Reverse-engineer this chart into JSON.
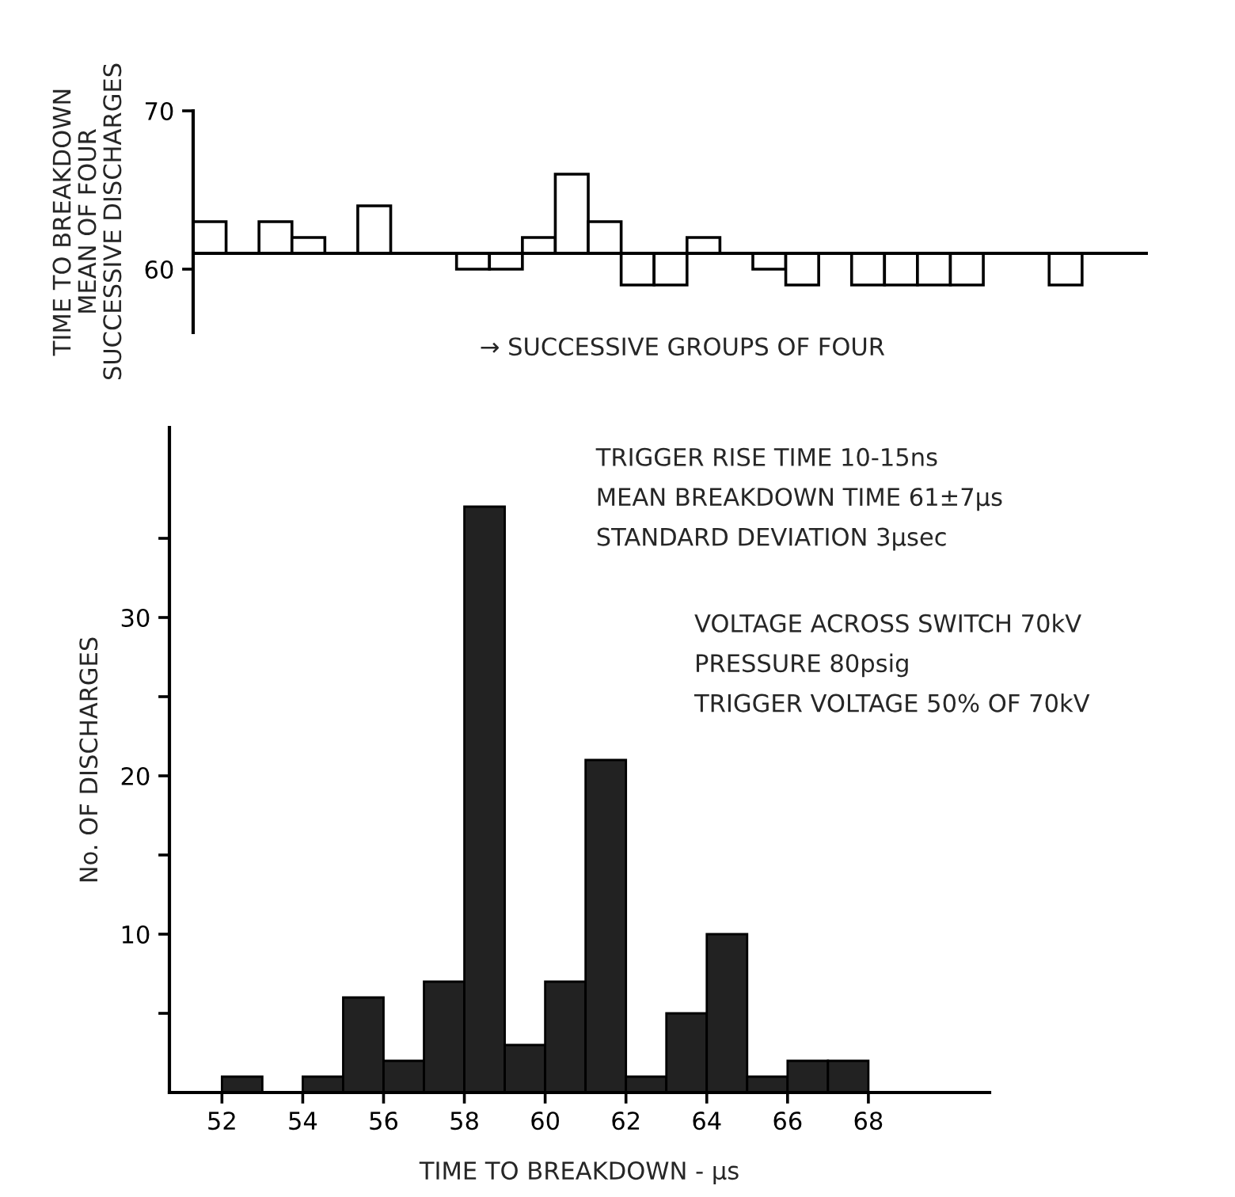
{
  "chart_data": [
    {
      "type": "bar",
      "ylabel": "TIME TO BREAKDOWN\nMEAN OF FOUR\nSUCCESSIVE DISCHARGES",
      "categories": [
        null,
        null,
        null,
        null,
        null,
        null,
        null,
        null,
        null,
        null,
        null,
        null,
        null,
        null,
        null,
        null,
        null,
        null,
        null,
        null,
        null,
        null,
        null,
        null,
        null,
        null,
        null,
        null,
        null
      ],
      "base": [
        61,
        null,
        61,
        61,
        null,
        61,
        null,
        null,
        61,
        61,
        61,
        61,
        61,
        61,
        61,
        61,
        null,
        61,
        61,
        null,
        61,
        61,
        61,
        61,
        null,
        null,
        61,
        null,
        null
      ],
      "values": [
        2,
        null,
        2,
        1,
        null,
        3,
        null,
        null,
        -1,
        -1,
        1,
        5,
        2,
        -2,
        -2,
        1,
        null,
        -1,
        -2,
        null,
        -2,
        -2,
        -2,
        -2,
        null,
        null,
        -2,
        null,
        null
      ],
      "color": "#ffffff",
      "ylim": [
        56,
        70
      ],
      "yticks": [
        60,
        70
      ],
      "tick_labels": "y",
      "grid": false,
      "ref_lines": [
        {
          "axis": "y",
          "value": 61
        }
      ],
      "annotations": [
        "→ SUCCESSIVE GROUPS OF FOUR"
      ]
    },
    {
      "type": "histogram",
      "xlabel": "TIME TO BREAKDOWN - µs",
      "ylabel": "No. OF DISCHARGES",
      "bins": [
        52,
        53,
        54,
        55,
        56,
        57,
        58,
        59,
        60,
        61,
        62,
        63,
        64,
        65,
        66,
        67,
        68
      ],
      "values": [
        1,
        0,
        1,
        6,
        2,
        7,
        37,
        3,
        7,
        21,
        1,
        5,
        10,
        1,
        2,
        2
      ],
      "color": "#222222",
      "xlim": [
        50.7,
        71
      ],
      "xticks": [
        52,
        54,
        56,
        58,
        60,
        62,
        64,
        66,
        68
      ],
      "ylim": [
        0,
        42
      ],
      "yticks": [
        {
          "value": 5,
          "label": null
        },
        10,
        {
          "value": 15,
          "label": null
        },
        20,
        {
          "value": 25,
          "label": null
        },
        30,
        {
          "value": 35,
          "label": null
        }
      ],
      "grid": false,
      "annotations": [
        "TRIGGER RISE TIME 10-15ns",
        "MEAN BREAKDOWN TIME 61±7μs",
        "STANDARD DEVIATION 3μsec",
        "VOLTAGE ACROSS SWITCH 70kV",
        "PRESSURE 80psig",
        "TRIGGER VOLTAGE 50% OF 70kV"
      ]
    }
  ]
}
